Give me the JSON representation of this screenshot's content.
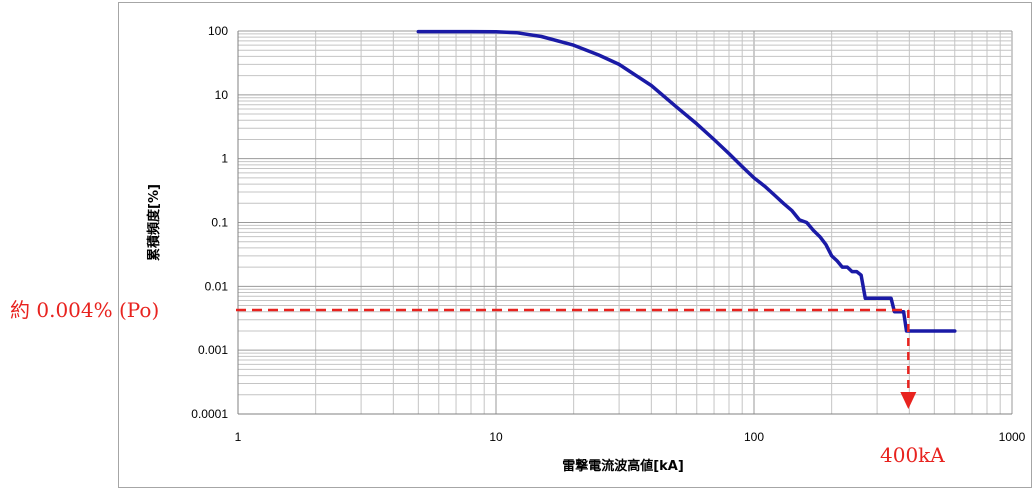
{
  "chart_data": {
    "type": "line",
    "title": "",
    "xlabel": "雷撃電流波高値[kA]",
    "ylabel": "累積頻度[%]",
    "xscale": "log",
    "yscale": "log",
    "xlim": [
      1,
      1000
    ],
    "ylim": [
      0.0001,
      100
    ],
    "grid": true,
    "legend": "none",
    "x_ticks": [
      "1",
      "10",
      "100",
      "1000"
    ],
    "y_ticks": [
      "0.0001",
      "0.001",
      "0.01",
      "0.1",
      "1",
      "10",
      "100"
    ],
    "series": [
      {
        "color": "#1a1aa6",
        "x": [
          5,
          8,
          10,
          12,
          15,
          20,
          25,
          30,
          40,
          50,
          60,
          70,
          80,
          90,
          100,
          110,
          120,
          130,
          140,
          150,
          160,
          170,
          180,
          190,
          200,
          210,
          220,
          230,
          240,
          250,
          260,
          270,
          280,
          290,
          300,
          310,
          320,
          330,
          340,
          350,
          360,
          370,
          380,
          390,
          400,
          410,
          420,
          450,
          500,
          550,
          600
        ],
        "y": [
          98,
          98,
          97,
          94,
          82,
          60,
          42,
          30,
          14,
          6.5,
          3.5,
          2.0,
          1.2,
          0.75,
          0.5,
          0.37,
          0.27,
          0.2,
          0.155,
          0.11,
          0.1,
          0.075,
          0.06,
          0.045,
          0.03,
          0.025,
          0.02,
          0.02,
          0.017,
          0.017,
          0.015,
          0.0065,
          0.0065,
          0.0065,
          0.0065,
          0.0065,
          0.0065,
          0.0065,
          0.0065,
          0.004,
          0.004,
          0.004,
          0.004,
          0.002,
          0.002,
          0.002,
          0.002,
          0.002,
          0.002,
          0.002,
          0.002
        ]
      }
    ],
    "annotations": [
      {
        "text": "約 0.004% (Po)",
        "y": 0.004,
        "color": "#e8231f"
      },
      {
        "text": "400kA",
        "x": 400,
        "color": "#e8231f"
      }
    ]
  }
}
